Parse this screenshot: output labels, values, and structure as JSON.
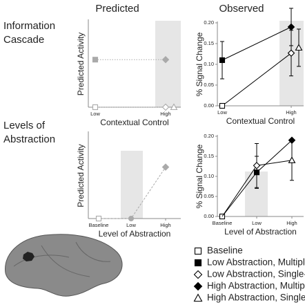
{
  "column_titles": [
    "Predicted",
    "Observed"
  ],
  "row_titles": [
    [
      "Information",
      "Cascade"
    ],
    [
      "Levels of",
      "Abstraction"
    ]
  ],
  "legend": [
    {
      "label": "Baseline",
      "marker": "square-open"
    },
    {
      "label": "Low Abstraction, Multiple-trial",
      "marker": "square-filled"
    },
    {
      "label": "Low Abstraction, Single-trial",
      "marker": "diamond-open"
    },
    {
      "label": "High Abstraction, Multiple-trial",
      "marker": "diamond-filled"
    },
    {
      "label": "High Abstraction, Single-trial",
      "marker": "triangle-open"
    }
  ],
  "chart_data": [
    {
      "type": "line",
      "ylabel": "Predicted Activity",
      "xlabel": "Contextual Control",
      "categories": [
        "Low",
        "High"
      ],
      "ylim": [
        0,
        1
      ],
      "highlight": 1,
      "series": [
        {
          "color": "#aaaaaa",
          "dash": "dotted",
          "markers": [
            "square-filled",
            "diamond-filled"
          ],
          "values": [
            0.55,
            0.55
          ]
        },
        {
          "color": "#aaaaaa",
          "dash": "dotted",
          "markers": [
            "square-open",
            "diamond-open"
          ],
          "values": [
            0,
            0
          ]
        },
        {
          "color": "#aaaaaa",
          "markers": [
            null,
            "triangle-open"
          ],
          "values": [
            null,
            0
          ]
        }
      ]
    },
    {
      "type": "line",
      "ylabel": "% Signal Change",
      "xlabel": "Contextual Control",
      "categories": [
        "Low",
        "High"
      ],
      "ylim": [
        0,
        0.2
      ],
      "highlight": 1,
      "yticks": [
        {
          "value": 0,
          "label": "0.00"
        },
        {
          "value": 0.05,
          "label": "0.05"
        },
        {
          "value": 0.1,
          "label": "0.10"
        },
        {
          "value": 0.15,
          "label": "0.15"
        },
        {
          "value": 0.2,
          "label": "0.20"
        }
      ],
      "series": [
        {
          "color": "#000000",
          "markers": [
            "square-filled",
            "diamond-filled"
          ],
          "values": [
            0.11,
            0.19
          ],
          "errors": [
            0.045,
            0.045
          ]
        },
        {
          "color": "#000000",
          "markers": [
            "square-open",
            "diamond-open"
          ],
          "values": [
            0,
            0.127
          ],
          "errors": [
            null,
            0.055
          ]
        },
        {
          "color": "#000000",
          "markers": [
            null,
            "triangle-open"
          ],
          "values": [
            null,
            0.14
          ],
          "errors": [
            null,
            0.045
          ]
        }
      ]
    },
    {
      "type": "line",
      "ylabel": "Predicted Activity",
      "xlabel": "Level of Abstraction",
      "categories": [
        "Baseline",
        "Low",
        "High"
      ],
      "ylim": [
        0,
        1
      ],
      "highlight": 1,
      "series": [
        {
          "color": "#aaaaaa",
          "dash": "dashed",
          "markers": [
            "square-open",
            "circle-filled",
            "diamond-filled"
          ],
          "values": [
            0,
            0,
            0.6
          ]
        }
      ]
    },
    {
      "type": "line",
      "ylabel": "% Signal Change",
      "xlabel": "Level of Abstraction",
      "categories": [
        "Baseline",
        "Low",
        "High"
      ],
      "ylim": [
        0,
        0.2
      ],
      "highlight": 1,
      "yticks": [
        {
          "value": 0,
          "label": "0.00"
        },
        {
          "value": 0.05,
          "label": "0.05"
        },
        {
          "value": 0.1,
          "label": "0.10"
        },
        {
          "value": 0.15,
          "label": "0.15"
        },
        {
          "value": 0.2,
          "label": "0.20"
        }
      ],
      "series": [
        {
          "color": "#000000",
          "markers": [
            "square-open",
            "square-filled",
            "diamond-filled"
          ],
          "values": [
            0,
            0.11,
            0.19
          ],
          "errors": [
            null,
            0.04,
            null
          ]
        },
        {
          "color": "#000000",
          "markers": [
            null,
            "diamond-open",
            "triangle-open"
          ],
          "values": [
            0,
            0.127,
            0.14
          ],
          "errors": [
            null,
            0.055,
            0.05
          ]
        }
      ]
    }
  ]
}
